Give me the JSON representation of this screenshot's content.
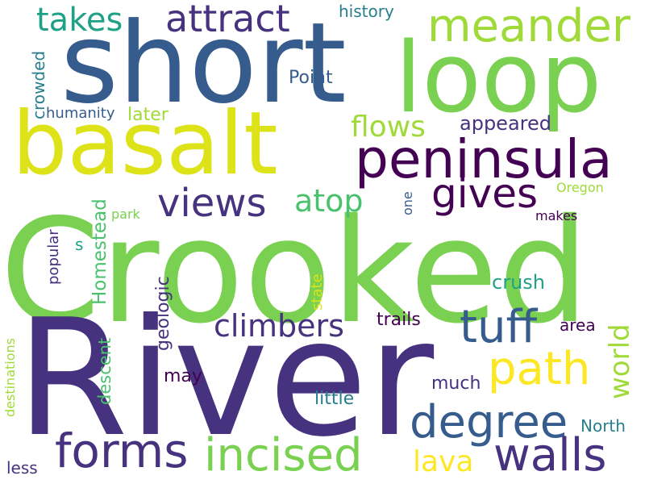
{
  "colors": {
    "background": "#ffffff",
    "palette": [
      "#440154",
      "#46327e",
      "#365c8d",
      "#277f8e",
      "#1fa187",
      "#4ac16d",
      "#7ad151",
      "#a0da39",
      "#dde318",
      "#fde725"
    ]
  },
  "words": {
    "crooked": "Crooked",
    "river": "River",
    "short": "short",
    "loop": "loop",
    "basalt": "basalt",
    "peninsula": "peninsula",
    "meander": "meander",
    "attract": "attract",
    "takes": "takes",
    "history": "history",
    "gives": "gives",
    "views": "views",
    "atop": "atop",
    "flows": "flows",
    "appeared": "appeared",
    "point": "Point",
    "later": "later",
    "humanity": "humanity",
    "crowded": "crowded",
    "homestead": "Homestead",
    "park": "park",
    "one": "one",
    "oregon": "Oregon",
    "makes": "makes",
    "s": "s",
    "popular": "popular",
    "geologic": "geologic",
    "crush": "crush",
    "path": "path",
    "tuff": "tuff",
    "climbers": "climbers",
    "trails": "trails",
    "area": "area",
    "world": "world",
    "state": "state",
    "descent": "descent",
    "may": "may",
    "much": "much",
    "little": "little",
    "degree": "degree",
    "north": "North",
    "destinations": "destinations",
    "forms": "forms",
    "incised": "incised",
    "lava": "lava",
    "walls": "walls",
    "less": "less"
  }
}
